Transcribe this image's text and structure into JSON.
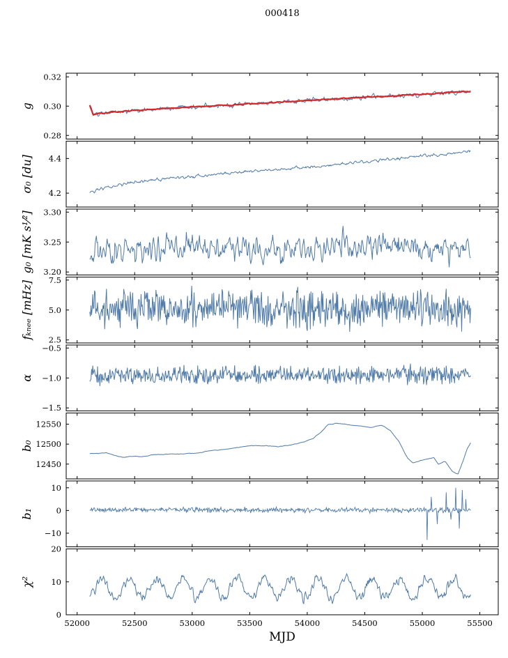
{
  "chart_data": {
    "type": "line",
    "title": "000418",
    "xlabel": "MJD",
    "xlim": [
      51905,
      55660
    ],
    "x_data_range": [
      52110,
      55420
    ],
    "grid": false,
    "legend": "none",
    "xticks": [
      {
        "value": 52000,
        "label": "52000"
      },
      {
        "value": 52500,
        "label": "52500"
      },
      {
        "value": 53000,
        "label": "53000"
      },
      {
        "value": 53500,
        "label": "53500"
      },
      {
        "value": 54000,
        "label": "54000"
      },
      {
        "value": 54500,
        "label": "54500"
      },
      {
        "value": 55000,
        "label": "55000"
      },
      {
        "value": 55500,
        "label": "55500"
      }
    ],
    "colors": {
      "line": "#4f7aa8",
      "overlay": "#d62728",
      "axis": "#000000"
    },
    "panels": [
      {
        "id": "g",
        "ylabel": "g",
        "ylim": [
          0.2775,
          0.3225
        ],
        "yticks": [
          {
            "value": 0.28,
            "label": "0.28"
          },
          {
            "value": 0.3,
            "label": "0.30"
          },
          {
            "value": 0.32,
            "label": "0.32"
          }
        ],
        "series": [
          {
            "name": "g-noisy",
            "color": "#4f7aa8",
            "width": 1,
            "noise": 0.0012,
            "smooth": 1,
            "trend": [
              [
                52110,
                0.3005
              ],
              [
                52140,
                0.2942
              ],
              [
                52200,
                0.295
              ],
              [
                52300,
                0.2958
              ],
              [
                52500,
                0.297
              ],
              [
                52750,
                0.2982
              ],
              [
                53000,
                0.2994
              ],
              [
                53250,
                0.3004
              ],
              [
                53500,
                0.3016
              ],
              [
                53750,
                0.3026
              ],
              [
                54000,
                0.3038
              ],
              [
                54250,
                0.305
              ],
              [
                54500,
                0.306
              ],
              [
                54750,
                0.307
              ],
              [
                55000,
                0.308
              ],
              [
                55200,
                0.309
              ],
              [
                55300,
                0.3096
              ],
              [
                55420,
                0.3098
              ]
            ]
          },
          {
            "name": "g-fit",
            "color": "#d62728",
            "width": 2.2,
            "noise": 0.0004,
            "smooth": 2,
            "trend": [
              [
                52110,
                0.3005
              ],
              [
                52140,
                0.2942
              ],
              [
                52200,
                0.295
              ],
              [
                52300,
                0.2958
              ],
              [
                52500,
                0.297
              ],
              [
                52750,
                0.2982
              ],
              [
                53000,
                0.2994
              ],
              [
                53250,
                0.3004
              ],
              [
                53500,
                0.3016
              ],
              [
                53750,
                0.3026
              ],
              [
                54000,
                0.3038
              ],
              [
                54250,
                0.305
              ],
              [
                54500,
                0.306
              ],
              [
                54750,
                0.307
              ],
              [
                55000,
                0.308
              ],
              [
                55200,
                0.309
              ],
              [
                55300,
                0.3096
              ],
              [
                55420,
                0.3098
              ]
            ]
          }
        ]
      },
      {
        "id": "sigma0",
        "ylabel": "σ₀ [du]",
        "ylim": [
          4.12,
          4.5
        ],
        "yticks": [
          {
            "value": 4.2,
            "label": "4.2"
          },
          {
            "value": 4.4,
            "label": "4.4"
          }
        ],
        "series": [
          {
            "name": "sigma0",
            "color": "#4f7aa8",
            "width": 1,
            "noise": 0.007,
            "smooth": 1,
            "trend": [
              [
                52110,
                4.205
              ],
              [
                52200,
                4.225
              ],
              [
                52350,
                4.245
              ],
              [
                52500,
                4.262
              ],
              [
                52700,
                4.278
              ],
              [
                52900,
                4.292
              ],
              [
                53100,
                4.303
              ],
              [
                53300,
                4.315
              ],
              [
                53500,
                4.325
              ],
              [
                53700,
                4.335
              ],
              [
                53900,
                4.345
              ],
              [
                54100,
                4.355
              ],
              [
                54300,
                4.368
              ],
              [
                54500,
                4.38
              ],
              [
                54700,
                4.395
              ],
              [
                54900,
                4.408
              ],
              [
                55100,
                4.42
              ],
              [
                55250,
                4.43
              ],
              [
                55420,
                4.442
              ]
            ]
          }
        ]
      },
      {
        "id": "g0",
        "ylabel": "g₀ [mK s¹⁄²]",
        "ylim": [
          3.195,
          3.305
        ],
        "yticks": [
          {
            "value": 3.2,
            "label": "3.20"
          },
          {
            "value": 3.25,
            "label": "3.25"
          },
          {
            "value": 3.3,
            "label": "3.30"
          }
        ],
        "series": [
          {
            "name": "g0",
            "color": "#4f7aa8",
            "width": 1,
            "noise": 0.018,
            "smooth": 1,
            "trend": [
              [
                52110,
                3.236
              ],
              [
                53000,
                3.242
              ],
              [
                53800,
                3.24
              ],
              [
                54500,
                3.243
              ],
              [
                55420,
                3.238
              ]
            ]
          }
        ]
      },
      {
        "id": "fknee",
        "ylabel": "fₖₙₑₑ [mHz]",
        "ylim": [
          2.25,
          7.75
        ],
        "yticks": [
          {
            "value": 2.5,
            "label": "2.5"
          },
          {
            "value": 5.0,
            "label": "5.0"
          },
          {
            "value": 7.5,
            "label": "7.5"
          }
        ],
        "series": [
          {
            "name": "fknee",
            "color": "#4f7aa8",
            "width": 1,
            "noise": 0.78,
            "smooth": 0,
            "trend": [
              [
                52110,
                5.15
              ],
              [
                55420,
                5.05
              ]
            ]
          }
        ]
      },
      {
        "id": "alpha",
        "ylabel": "α",
        "ylim": [
          -1.55,
          -0.45
        ],
        "yticks": [
          {
            "value": -0.5,
            "label": "−0.5"
          },
          {
            "value": -1.0,
            "label": "−1.0"
          },
          {
            "value": -1.5,
            "label": "−1.5"
          }
        ],
        "series": [
          {
            "name": "alpha",
            "color": "#4f7aa8",
            "width": 1,
            "noise": 0.07,
            "smooth": 0,
            "trend": [
              [
                52110,
                -0.95
              ],
              [
                55420,
                -0.94
              ]
            ]
          }
        ]
      },
      {
        "id": "b0",
        "ylabel": "b₀",
        "ylim": [
          12413,
          12578
        ],
        "yticks": [
          {
            "value": 12450,
            "label": "12450"
          },
          {
            "value": 12500,
            "label": "12500"
          },
          {
            "value": 12550,
            "label": "12550"
          }
        ],
        "series": [
          {
            "name": "b0",
            "color": "#4f7aa8",
            "width": 1,
            "noise": 4,
            "smooth": 10,
            "trend": [
              [
                52110,
                12477
              ],
              [
                52250,
                12477
              ],
              [
                52400,
                12468
              ],
              [
                52550,
                12470
              ],
              [
                52700,
                12474
              ],
              [
                52900,
                12476
              ],
              [
                53050,
                12479
              ],
              [
                53200,
                12484
              ],
              [
                53350,
                12490
              ],
              [
                53500,
                12496
              ],
              [
                53650,
                12497
              ],
              [
                53750,
                12492
              ],
              [
                53850,
                12496
              ],
              [
                53950,
                12505
              ],
              [
                54050,
                12515
              ],
              [
                54120,
                12530
              ],
              [
                54180,
                12550
              ],
              [
                54250,
                12553
              ],
              [
                54350,
                12549
              ],
              [
                54450,
                12545
              ],
              [
                54550,
                12542
              ],
              [
                54650,
                12546
              ],
              [
                54720,
                12535
              ],
              [
                54800,
                12505
              ],
              [
                54870,
                12465
              ],
              [
                54920,
                12452
              ],
              [
                54980,
                12458
              ],
              [
                55050,
                12463
              ],
              [
                55100,
                12467
              ],
              [
                55140,
                12450
              ],
              [
                55200,
                12456
              ],
              [
                55260,
                12432
              ],
              [
                55310,
                12425
              ],
              [
                55350,
                12455
              ],
              [
                55390,
                12490
              ],
              [
                55420,
                12505
              ]
            ]
          }
        ]
      },
      {
        "id": "b1",
        "ylabel": "b₁",
        "ylim": [
          -16,
          13
        ],
        "yticks": [
          {
            "value": -10,
            "label": "−10"
          },
          {
            "value": 0,
            "label": "0"
          },
          {
            "value": 10,
            "label": "10"
          }
        ],
        "series": [
          {
            "name": "b1",
            "color": "#4f7aa8",
            "width": 0.9,
            "noise": 0.55,
            "smooth": 0,
            "trend": [
              [
                52110,
                0.3
              ],
              [
                55420,
                0.2
              ]
            ],
            "spikes": [
              {
                "x": 55040,
                "y": -13
              },
              {
                "x": 55080,
                "y": 6
              },
              {
                "x": 55130,
                "y": -6
              },
              {
                "x": 55210,
                "y": 8
              },
              {
                "x": 55250,
                "y": -4
              },
              {
                "x": 55290,
                "y": 10
              },
              {
                "x": 55320,
                "y": -8
              },
              {
                "x": 55350,
                "y": 9
              },
              {
                "x": 55380,
                "y": 5
              }
            ]
          }
        ]
      },
      {
        "id": "chi2",
        "ylabel": "χ²",
        "ylim": [
          0,
          20
        ],
        "yticks": [
          {
            "value": 0,
            "label": "0"
          },
          {
            "value": 10,
            "label": "10"
          },
          {
            "value": 20,
            "label": "20"
          }
        ],
        "series": [
          {
            "name": "chi2",
            "color": "#4f7aa8",
            "width": 1,
            "noise": 1.3,
            "smooth": 1,
            "oscillation": {
              "period": 235,
              "amplitude": 2.9,
              "phase": -1.3
            },
            "trend": [
              [
                52110,
                8.2
              ],
              [
                55420,
                8.0
              ]
            ]
          }
        ]
      }
    ]
  }
}
